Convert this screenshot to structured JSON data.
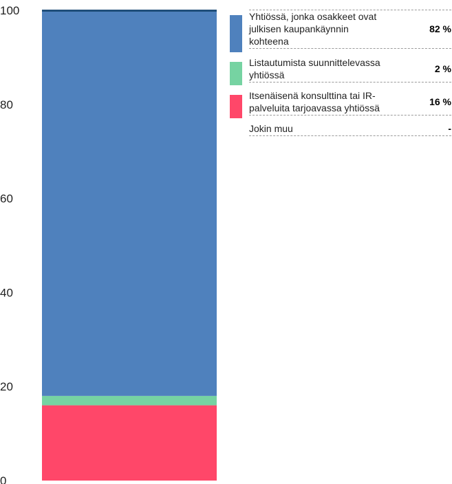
{
  "chart_data": {
    "type": "bar",
    "stacked": true,
    "categories": [
      ""
    ],
    "ylim": [
      0,
      100
    ],
    "yticks": [
      "0",
      "20",
      "40",
      "60",
      "80",
      "100"
    ],
    "series": [
      {
        "name": "Itsenäisenä konsulttina tai IR-palveluita tarjoavassa yhtiössä",
        "values": [
          16
        ],
        "value_label": "16 %",
        "color": "#FF4769"
      },
      {
        "name": "Listautumista suunnittelevassa yhtiössä",
        "values": [
          2
        ],
        "value_label": "2 %",
        "color": "#76D3A2"
      },
      {
        "name": "Yhtiössä, jonka osakkeet ovat julkisen kaupankäynnin kohteena",
        "values": [
          82
        ],
        "value_label": "82 %",
        "color": "#4F81BD"
      },
      {
        "name": "Jokin muu",
        "values": [
          0
        ],
        "value_label": "-",
        "color": "#1F4E79"
      }
    ],
    "legend_order": [
      2,
      1,
      0,
      3
    ],
    "legend_position": "top-right"
  }
}
